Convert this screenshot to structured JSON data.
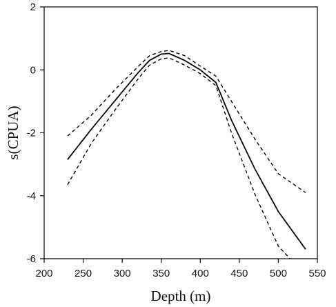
{
  "chart_data": {
    "type": "line",
    "title": "",
    "xlabel": "Depth (m)",
    "ylabel": "s(CPUA)",
    "xlim": [
      200,
      550
    ],
    "ylim": [
      -6,
      2
    ],
    "xticks": [
      200,
      250,
      300,
      350,
      400,
      450,
      500,
      550
    ],
    "yticks": [
      -6,
      -4,
      -2,
      0,
      2
    ],
    "xtick_labels": [
      "200",
      "250",
      "300",
      "350",
      "400",
      "450",
      "500",
      "550"
    ],
    "ytick_labels": [
      "-6",
      "-4",
      "-2",
      "0",
      "2"
    ],
    "grid": false,
    "legend": "none",
    "series": [
      {
        "style": "solid",
        "x": [
          230,
          260,
          290,
          320,
          335,
          350,
          360,
          380,
          400,
          420,
          440,
          470,
          500,
          535
        ],
        "y": [
          -2.85,
          -1.9,
          -1.0,
          -0.1,
          0.3,
          0.5,
          0.52,
          0.3,
          0.0,
          -0.4,
          -1.6,
          -3.15,
          -4.5,
          -5.7
        ]
      },
      {
        "style": "dashed",
        "x": [
          230,
          260,
          290,
          320,
          335,
          350,
          360,
          380,
          400,
          420,
          440,
          470,
          500,
          535
        ],
        "y": [
          -2.1,
          -1.45,
          -0.65,
          0.1,
          0.45,
          0.58,
          0.62,
          0.45,
          0.12,
          -0.2,
          -1.0,
          -2.2,
          -3.3,
          -3.9
        ]
      },
      {
        "style": "dashed",
        "x": [
          230,
          260,
          290,
          320,
          335,
          350,
          360,
          380,
          400,
          420,
          440,
          470,
          500,
          515
        ],
        "y": [
          -3.65,
          -2.35,
          -1.3,
          -0.3,
          0.15,
          0.35,
          0.38,
          0.15,
          -0.12,
          -0.5,
          -2.0,
          -3.95,
          -5.6,
          -6.0
        ]
      }
    ]
  }
}
